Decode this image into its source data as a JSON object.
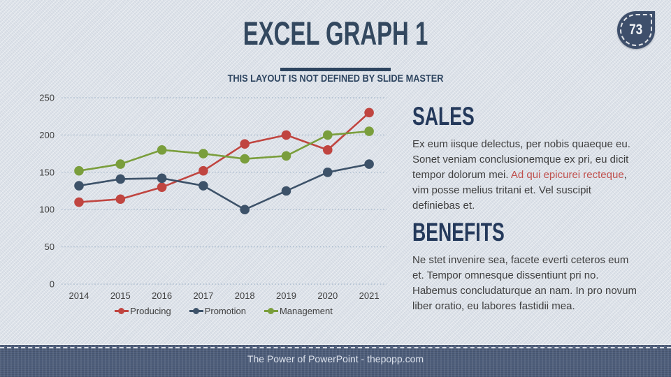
{
  "slide": {
    "title": "EXCEL GRAPH 1",
    "subtitle": "THIS LAYOUT IS NOT DEFINED BY SLIDE MASTER",
    "page_number": "73",
    "footer": "The Power of PowerPoint - thepopp.com"
  },
  "sections": {
    "sales": {
      "heading": "SALES",
      "body_before": "Ex eum iisque delectus, per nobis quaeque eu. Sonet veniam conclusionemque ex pri, eu dicit tempor dolorum mei. ",
      "link_text": "Ad qui epicurei recteque",
      "body_after": ", vim posse melius tritani et. Vel suscipit definiebas et."
    },
    "benefits": {
      "heading": "BENEFITS",
      "body": "Ne stet invenire sea, facete everti ceteros eum et. Tempor omnesque dissentiunt pri no. Habemus concludaturque an nam. In pro novum liber oratio, eu labores fastidii mea."
    }
  },
  "chart_data": {
    "type": "line",
    "title": "",
    "categories": [
      "2014",
      "2015",
      "2016",
      "2017",
      "2018",
      "2019",
      "2020",
      "2021"
    ],
    "series": [
      {
        "name": "Producing",
        "color": "#C04540",
        "values": [
          110,
          114,
          130,
          152,
          188,
          200,
          180,
          230
        ]
      },
      {
        "name": "Promotion",
        "color": "#3D5269",
        "values": [
          132,
          141,
          142,
          132,
          100,
          125,
          150,
          161
        ]
      },
      {
        "name": "Management",
        "color": "#7A9E3C",
        "values": [
          152,
          161,
          180,
          175,
          168,
          172,
          200,
          205
        ]
      }
    ],
    "xlabel": "",
    "ylabel": "",
    "ylim": [
      0,
      250
    ],
    "ytick_step": 50,
    "grid": "horizontal-dotted",
    "legend_position": "bottom",
    "marker": "circle"
  },
  "colors": {
    "accent_navy": "#2E4560",
    "heading_navy": "#24395B",
    "text_dark": "#3F3F3F",
    "tick_label": "#404040",
    "link_red": "#C0504D",
    "grid": "#9FB3C8",
    "footer_bg": "#4E5E7B",
    "badge_bg": "#3E4F6B",
    "background": "#DDE2E9"
  }
}
